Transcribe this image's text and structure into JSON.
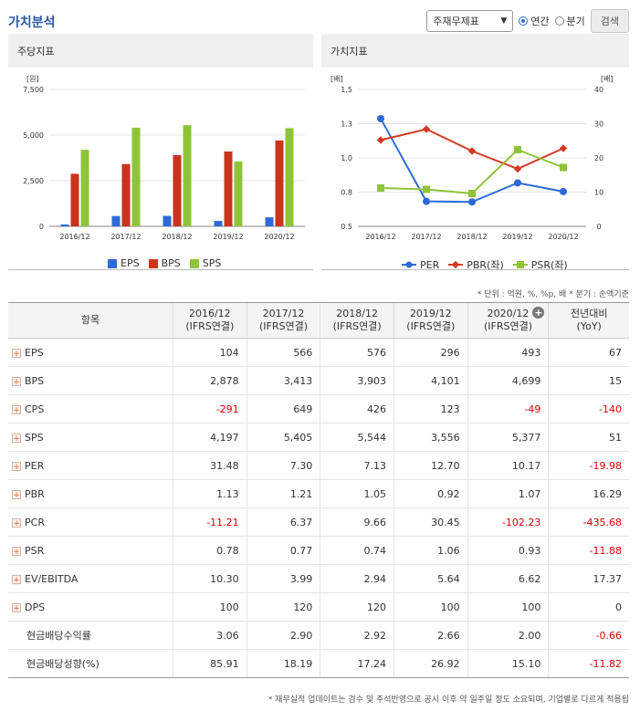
{
  "header": {
    "title": "가치분석",
    "select_value": "주재무제표",
    "radio_annual": "연간",
    "radio_quarter": "분기",
    "search_button": "검색"
  },
  "panels": {
    "left_title": "주당지표",
    "right_title": "가치지표"
  },
  "colors": {
    "eps": "#2d6ad6",
    "bps": "#c8341c",
    "sps": "#8ec43a",
    "per": "#2d6ad6",
    "pbr": "#d03b22",
    "psr": "#8ec43a"
  },
  "chart_data": [
    {
      "type": "bar",
      "title": "주당지표",
      "ylabel": "[원]",
      "categories": [
        "2016/12",
        "2017/12",
        "2018/12",
        "2019/12",
        "2020/12"
      ],
      "y_ticks": [
        "0",
        "2,500",
        "5,000",
        "7,500"
      ],
      "ylim": [
        0,
        7500
      ],
      "series": [
        {
          "name": "EPS",
          "values": [
            104,
            566,
            576,
            296,
            493
          ]
        },
        {
          "name": "BPS",
          "values": [
            2878,
            3413,
            3903,
            4101,
            4699
          ]
        },
        {
          "name": "SPS",
          "values": [
            4197,
            5405,
            5544,
            3556,
            5377
          ]
        }
      ],
      "legend": "bottom"
    },
    {
      "type": "line",
      "title": "가치지표",
      "ylabel_left": "[배]",
      "ylabel_right": "[배]",
      "categories": [
        "2016/12",
        "2017/12",
        "2018/12",
        "2019/12",
        "2020/12"
      ],
      "y_ticks_left": [
        "0.5",
        "0.8",
        "1.0",
        "1.3",
        "1.5"
      ],
      "y_ticks_right": [
        "0",
        "10",
        "20",
        "30",
        "40"
      ],
      "ylim_left": [
        0.5,
        1.5
      ],
      "ylim_right": [
        0,
        40
      ],
      "series": [
        {
          "name": "PER",
          "axis": "right",
          "values": [
            31.48,
            7.3,
            7.13,
            12.7,
            10.17
          ]
        },
        {
          "name": "PBR(좌)",
          "axis": "left",
          "values": [
            1.13,
            1.21,
            1.05,
            0.92,
            1.07
          ]
        },
        {
          "name": "PSR(좌)",
          "axis": "left",
          "values": [
            0.78,
            0.77,
            0.74,
            1.06,
            0.93
          ]
        }
      ],
      "legend": "bottom"
    }
  ],
  "unit_note": "* 단위 : 억원, %, %p, 배    * 분기 : 순액기준",
  "table": {
    "headers": [
      {
        "l1": "항목",
        "l2": ""
      },
      {
        "l1": "2016/12",
        "l2": "(IFRS연결)"
      },
      {
        "l1": "2017/12",
        "l2": "(IFRS연결)"
      },
      {
        "l1": "2018/12",
        "l2": "(IFRS연결)"
      },
      {
        "l1": "2019/12",
        "l2": "(IFRS연결)"
      },
      {
        "l1": "2020/12",
        "l2": "(IFRS연결)"
      },
      {
        "l1": "전년대비",
        "l2": "(YoY)"
      }
    ],
    "rows": [
      {
        "label": "EPS",
        "expandable": true,
        "values": [
          "104",
          "566",
          "576",
          "296",
          "493",
          "67"
        ]
      },
      {
        "label": "BPS",
        "expandable": true,
        "values": [
          "2,878",
          "3,413",
          "3,903",
          "4,101",
          "4,699",
          "15"
        ]
      },
      {
        "label": "CPS",
        "expandable": true,
        "values": [
          "-291",
          "649",
          "426",
          "123",
          "-49",
          "-140"
        ]
      },
      {
        "label": "SPS",
        "expandable": true,
        "values": [
          "4,197",
          "5,405",
          "5,544",
          "3,556",
          "5,377",
          "51"
        ]
      },
      {
        "label": "PER",
        "expandable": true,
        "values": [
          "31.48",
          "7.30",
          "7.13",
          "12.70",
          "10.17",
          "-19.98"
        ]
      },
      {
        "label": "PBR",
        "expandable": true,
        "values": [
          "1.13",
          "1.21",
          "1.05",
          "0.92",
          "1.07",
          "16.29"
        ]
      },
      {
        "label": "PCR",
        "expandable": true,
        "values": [
          "-11.21",
          "6.37",
          "9.66",
          "30.45",
          "-102.23",
          "-435.68"
        ]
      },
      {
        "label": "PSR",
        "expandable": true,
        "values": [
          "0.78",
          "0.77",
          "0.74",
          "1.06",
          "0.93",
          "-11.88"
        ]
      },
      {
        "label": "EV/EBITDA",
        "expandable": true,
        "values": [
          "10.30",
          "3.99",
          "2.94",
          "5.64",
          "6.62",
          "17.37"
        ]
      },
      {
        "label": "DPS",
        "expandable": true,
        "values": [
          "100",
          "120",
          "120",
          "100",
          "100",
          "0"
        ]
      },
      {
        "label": "현금배당수익률",
        "expandable": false,
        "values": [
          "3.06",
          "2.90",
          "2.92",
          "2.66",
          "2.00",
          "-0.66"
        ]
      },
      {
        "label": "현금배당성향(%)",
        "expandable": false,
        "values": [
          "85.91",
          "18.19",
          "17.24",
          "26.92",
          "15.10",
          "-11.82"
        ]
      }
    ]
  },
  "footer_note": "* 재무실적 업데이트는 검수 및 주석반영으로 공시 이후 약 일주일 정도 소요되며, 기업별로 다르게 적용됩"
}
